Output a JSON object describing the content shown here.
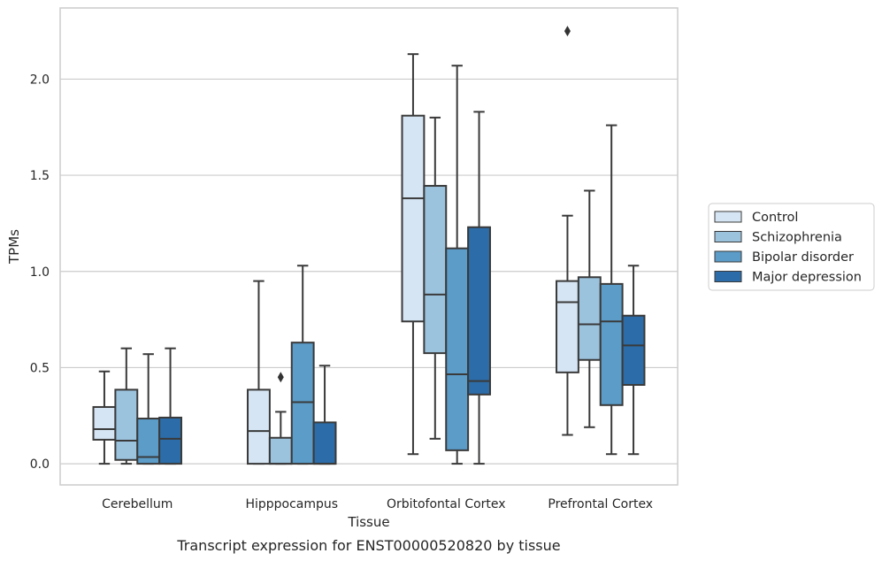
{
  "caption": "Transcript expression for ENST00000520820 by tissue",
  "chart_data": {
    "type": "box",
    "xlabel": "Tissue",
    "ylabel": "TPMs",
    "ylim": [
      -0.11,
      2.37
    ],
    "yticks": [
      "0.0",
      "0.5",
      "1.0",
      "1.5",
      "2.0"
    ],
    "grid": "horizontal",
    "legend_position": "right",
    "categories": [
      "Cerebellum",
      "Hipppocampus",
      "Orbitofontal Cortex",
      "Prefrontal Cortex"
    ],
    "series": [
      {
        "name": "Control",
        "color": "#d6e5f4",
        "boxes": [
          {
            "whisker_low": 0.0,
            "q1": 0.125,
            "median": 0.18,
            "q3": 0.295,
            "whisker_high": 0.48,
            "outliers": []
          },
          {
            "whisker_low": 0.0,
            "q1": 0.0,
            "median": 0.17,
            "q3": 0.385,
            "whisker_high": 0.95,
            "outliers": []
          },
          {
            "whisker_low": 0.05,
            "q1": 0.74,
            "median": 1.38,
            "q3": 1.81,
            "whisker_high": 2.13,
            "outliers": []
          },
          {
            "whisker_low": 0.15,
            "q1": 0.475,
            "median": 0.84,
            "q3": 0.95,
            "whisker_high": 1.29,
            "outliers": [
              2.25
            ]
          }
        ]
      },
      {
        "name": "Schizophrenia",
        "color": "#9cc3de",
        "boxes": [
          {
            "whisker_low": 0.0,
            "q1": 0.02,
            "median": 0.12,
            "q3": 0.385,
            "whisker_high": 0.6,
            "outliers": []
          },
          {
            "whisker_low": 0.0,
            "q1": 0.0,
            "median": 0.0,
            "q3": 0.135,
            "whisker_high": 0.27,
            "outliers": [
              0.45
            ]
          },
          {
            "whisker_low": 0.13,
            "q1": 0.575,
            "median": 0.88,
            "q3": 1.445,
            "whisker_high": 1.8,
            "outliers": []
          },
          {
            "whisker_low": 0.19,
            "q1": 0.54,
            "median": 0.725,
            "q3": 0.97,
            "whisker_high": 1.42,
            "outliers": []
          }
        ]
      },
      {
        "name": "Bipolar disorder",
        "color": "#5b9cc9",
        "boxes": [
          {
            "whisker_low": 0.0,
            "q1": 0.0,
            "median": 0.035,
            "q3": 0.235,
            "whisker_high": 0.57,
            "outliers": []
          },
          {
            "whisker_low": 0.0,
            "q1": 0.0,
            "median": 0.32,
            "q3": 0.63,
            "whisker_high": 1.03,
            "outliers": []
          },
          {
            "whisker_low": 0.0,
            "q1": 0.07,
            "median": 0.465,
            "q3": 1.12,
            "whisker_high": 2.07,
            "outliers": []
          },
          {
            "whisker_low": 0.05,
            "q1": 0.305,
            "median": 0.74,
            "q3": 0.935,
            "whisker_high": 1.76,
            "outliers": []
          }
        ]
      },
      {
        "name": "Major depression",
        "color": "#2c6ca8",
        "boxes": [
          {
            "whisker_low": 0.0,
            "q1": 0.0,
            "median": 0.13,
            "q3": 0.24,
            "whisker_high": 0.6,
            "outliers": []
          },
          {
            "whisker_low": 0.0,
            "q1": 0.0,
            "median": 0.0,
            "q3": 0.215,
            "whisker_high": 0.51,
            "outliers": []
          },
          {
            "whisker_low": 0.0,
            "q1": 0.36,
            "median": 0.43,
            "q3": 1.23,
            "whisker_high": 1.83,
            "outliers": []
          },
          {
            "whisker_low": 0.05,
            "q1": 0.41,
            "median": 0.615,
            "q3": 0.77,
            "whisker_high": 1.03,
            "outliers": []
          }
        ]
      }
    ]
  }
}
